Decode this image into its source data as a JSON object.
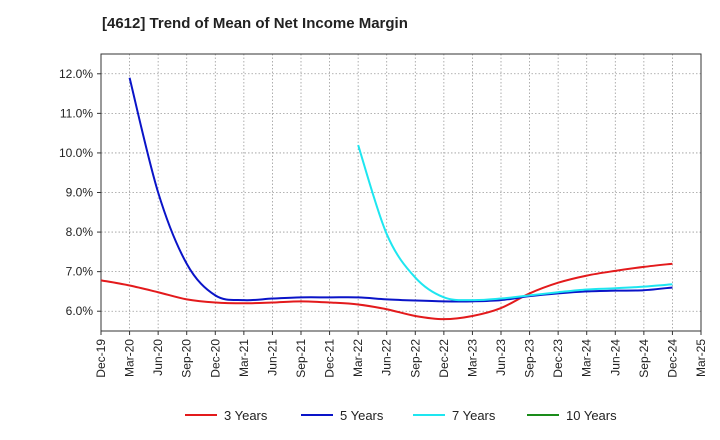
{
  "chart_data": {
    "type": "line",
    "title": "[4612]  Trend of Mean of Net Income Margin",
    "xlabel": "",
    "ylabel": "",
    "x_ticks": [
      "Dec-19",
      "Mar-20",
      "Jun-20",
      "Sep-20",
      "Dec-20",
      "Mar-21",
      "Jun-21",
      "Sep-21",
      "Dec-21",
      "Mar-22",
      "Jun-22",
      "Sep-22",
      "Dec-22",
      "Mar-23",
      "Jun-23",
      "Sep-23",
      "Dec-23",
      "Mar-24",
      "Jun-24",
      "Sep-24",
      "Dec-24",
      "Mar-25"
    ],
    "y_ticks": [
      "6.0%",
      "7.0%",
      "8.0%",
      "9.0%",
      "10.0%",
      "11.0%",
      "12.0%"
    ],
    "y_tick_values": [
      6.0,
      7.0,
      8.0,
      9.0,
      10.0,
      11.0,
      12.0
    ],
    "ylim": [
      5.5,
      12.5
    ],
    "grid": true,
    "legend_position": "bottom",
    "series": [
      {
        "name": "3 Years",
        "color": "#e31a1c",
        "x": [
          "Dec-19",
          "Mar-20",
          "Jun-20",
          "Sep-20",
          "Dec-20",
          "Mar-21",
          "Jun-21",
          "Sep-21",
          "Dec-21",
          "Mar-22",
          "Jun-22",
          "Sep-22",
          "Dec-22",
          "Mar-23",
          "Jun-23",
          "Sep-23",
          "Dec-23",
          "Mar-24",
          "Jun-24",
          "Sep-24",
          "Dec-24"
        ],
        "values": [
          6.78,
          6.65,
          6.48,
          6.3,
          6.22,
          6.2,
          6.22,
          6.25,
          6.22,
          6.17,
          6.05,
          5.88,
          5.8,
          5.88,
          6.08,
          6.45,
          6.72,
          6.9,
          7.02,
          7.12,
          7.2
        ]
      },
      {
        "name": "5 Years",
        "color": "#0a14c8",
        "x": [
          "Mar-20",
          "Jun-20",
          "Sep-20",
          "Dec-20",
          "Mar-21",
          "Jun-21",
          "Sep-21",
          "Dec-21",
          "Mar-22",
          "Jun-22",
          "Sep-22",
          "Dec-22",
          "Mar-23",
          "Jun-23",
          "Sep-23",
          "Dec-23",
          "Mar-24",
          "Jun-24",
          "Sep-24",
          "Dec-24"
        ],
        "values": [
          11.9,
          9.0,
          7.2,
          6.4,
          6.28,
          6.32,
          6.35,
          6.35,
          6.35,
          6.3,
          6.27,
          6.25,
          6.25,
          6.28,
          6.38,
          6.45,
          6.5,
          6.52,
          6.53,
          6.6
        ]
      },
      {
        "name": "7 Years",
        "color": "#1ee6f0",
        "x": [
          "Mar-22",
          "Jun-22",
          "Sep-22",
          "Dec-22",
          "Mar-23",
          "Jun-23",
          "Sep-23",
          "Dec-23",
          "Mar-24",
          "Jun-24",
          "Sep-24",
          "Dec-24"
        ],
        "values": [
          10.2,
          7.95,
          6.85,
          6.35,
          6.28,
          6.32,
          6.4,
          6.48,
          6.55,
          6.58,
          6.62,
          6.68
        ]
      },
      {
        "name": "10 Years",
        "color": "#1a8c1a",
        "x": [],
        "values": []
      }
    ]
  }
}
